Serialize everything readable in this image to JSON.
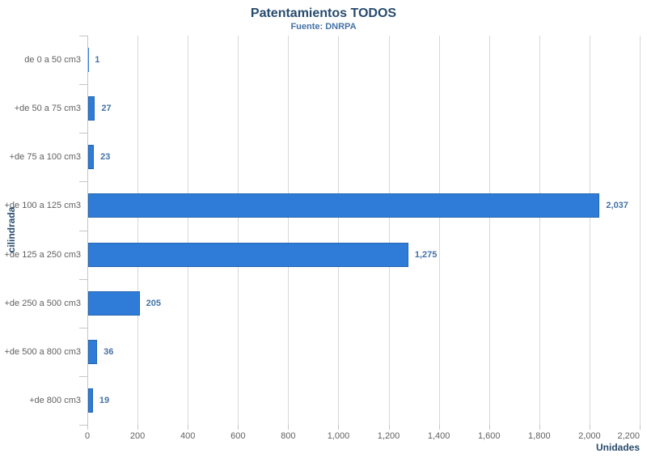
{
  "chart_data": {
    "type": "bar",
    "orientation": "horizontal",
    "title": "Patentamientos TODOS",
    "subtitle": "Fuente: DNRPA",
    "xlabel": "Unidades",
    "ylabel": "cilindrada",
    "categories": [
      "de 0 a 50 cm3",
      "+de 50 a 75 cm3",
      "+de 75 a 100 cm3",
      "+de 100 a 125 cm3",
      "+de 125 a 250 cm3",
      "+de 250 a 500 cm3",
      "+de 500 a 800 cm3",
      "+de 800 cm3"
    ],
    "values": [
      1,
      27,
      23,
      2037,
      1275,
      205,
      36,
      19
    ],
    "data_labels": [
      "1",
      "27",
      "23",
      "2,037",
      "1,275",
      "205",
      "36",
      "19"
    ],
    "xlim": [
      0,
      2200
    ],
    "x_ticks": [
      0,
      200,
      400,
      600,
      800,
      1000,
      1200,
      1400,
      1600,
      1800,
      2000,
      2200
    ],
    "x_tick_labels": [
      "0",
      "200",
      "400",
      "600",
      "800",
      "1,000",
      "1,200",
      "1,400",
      "1,600",
      "1,800",
      "2,000",
      "2,200"
    ],
    "grid": true,
    "legend": false,
    "colors": {
      "bar": "#2F7CD8",
      "bar_border": "#2566B0",
      "data_label": "#4572A7",
      "title": "#274B6D",
      "subtitle": "#4572A7",
      "axis_title": "#274B6D",
      "tick_label": "#606060",
      "category_label": "#606060",
      "gridline": "#D8D8D8",
      "axis_line": "#C6C6C6",
      "background": "#FFFFFF"
    }
  }
}
